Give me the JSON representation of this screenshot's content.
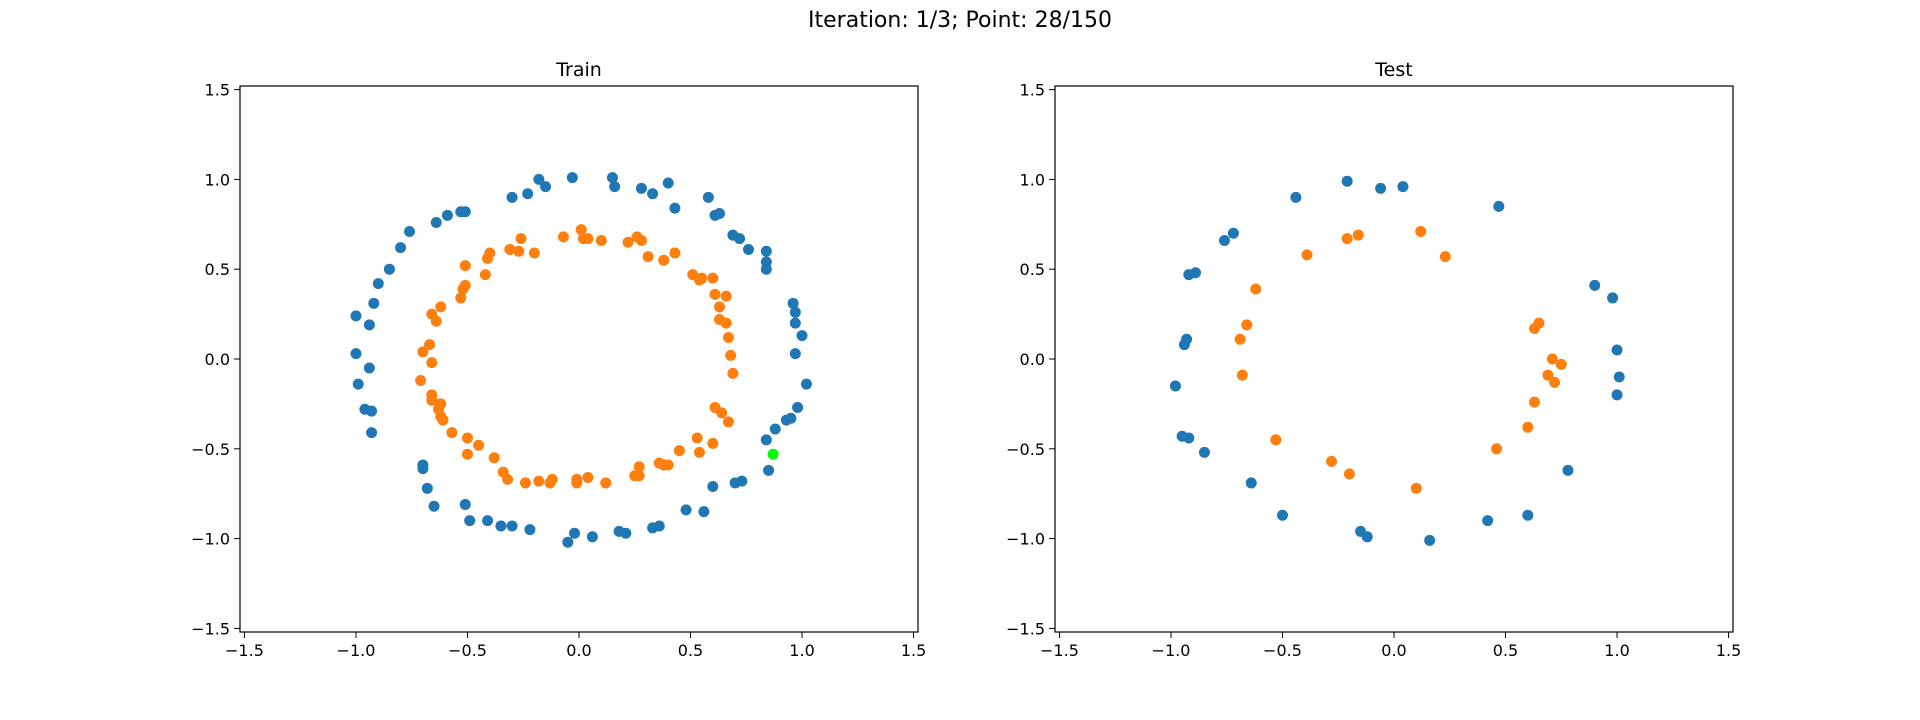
{
  "figure_title": "Iteration: 1/3; Point: 28/150",
  "colors": {
    "class_0": "#1f77b4",
    "class_1": "#ff7f0e",
    "current_point": "#00ff00"
  },
  "chart_data": [
    {
      "type": "scatter",
      "title": "Train",
      "xlim": [
        -1.52,
        1.52
      ],
      "ylim": [
        -1.52,
        1.52
      ],
      "xticks": [
        -1.5,
        -1.0,
        -0.5,
        0.0,
        0.5,
        1.0,
        1.5
      ],
      "yticks": [
        -1.5,
        -1.0,
        -0.5,
        0.0,
        0.5,
        1.0,
        1.5
      ],
      "grid": false,
      "series": [
        {
          "class": "class_0",
          "points": [
            [
              -1.0,
              0.24
            ],
            [
              -1.0,
              0.03
            ],
            [
              -0.99,
              -0.14
            ],
            [
              -0.96,
              -0.28
            ],
            [
              -0.94,
              -0.05
            ],
            [
              -0.93,
              -0.29
            ],
            [
              -0.93,
              -0.41
            ],
            [
              -0.94,
              0.19
            ],
            [
              -0.92,
              0.31
            ],
            [
              -0.9,
              0.42
            ],
            [
              -0.85,
              0.5
            ],
            [
              -0.8,
              0.62
            ],
            [
              -0.76,
              0.71
            ],
            [
              -0.7,
              -0.59
            ],
            [
              -0.7,
              -0.61
            ],
            [
              -0.68,
              -0.72
            ],
            [
              -0.65,
              -0.82
            ],
            [
              -0.64,
              0.76
            ],
            [
              -0.59,
              0.8
            ],
            [
              -0.53,
              0.82
            ],
            [
              -0.51,
              0.82
            ],
            [
              -0.51,
              -0.81
            ],
            [
              -0.49,
              -0.9
            ],
            [
              -0.41,
              -0.9
            ],
            [
              -0.35,
              -0.93
            ],
            [
              -0.3,
              -0.93
            ],
            [
              -0.3,
              0.9
            ],
            [
              -0.22,
              -0.95
            ],
            [
              -0.23,
              0.92
            ],
            [
              -0.18,
              1.0
            ],
            [
              -0.15,
              0.96
            ],
            [
              -0.03,
              1.01
            ],
            [
              -0.02,
              -0.97
            ],
            [
              -0.05,
              -1.02
            ],
            [
              0.06,
              -0.99
            ],
            [
              0.15,
              1.01
            ],
            [
              0.16,
              0.96
            ],
            [
              0.18,
              -0.96
            ],
            [
              0.21,
              -0.97
            ],
            [
              0.28,
              0.95
            ],
            [
              0.33,
              0.92
            ],
            [
              0.33,
              -0.94
            ],
            [
              0.36,
              -0.93
            ],
            [
              0.4,
              0.98
            ],
            [
              0.43,
              0.84
            ],
            [
              0.48,
              -0.84
            ],
            [
              0.56,
              -0.85
            ],
            [
              0.58,
              0.9
            ],
            [
              0.61,
              0.8
            ],
            [
              0.63,
              0.81
            ],
            [
              0.6,
              -0.71
            ],
            [
              0.69,
              0.69
            ],
            [
              0.72,
              0.67
            ],
            [
              0.7,
              -0.69
            ],
            [
              0.73,
              -0.68
            ],
            [
              0.76,
              0.61
            ],
            [
              0.84,
              0.6
            ],
            [
              0.84,
              0.54
            ],
            [
              0.84,
              0.5
            ],
            [
              0.84,
              -0.45
            ],
            [
              0.85,
              -0.62
            ],
            [
              0.88,
              -0.39
            ],
            [
              0.93,
              -0.34
            ],
            [
              0.95,
              -0.33
            ],
            [
              0.96,
              0.31
            ],
            [
              0.97,
              0.26
            ],
            [
              0.97,
              0.2
            ],
            [
              0.97,
              0.03
            ],
            [
              0.98,
              -0.27
            ],
            [
              1.0,
              0.13
            ],
            [
              1.02,
              -0.14
            ]
          ]
        },
        {
          "class": "class_1",
          "points": [
            [
              -0.71,
              -0.12
            ],
            [
              -0.7,
              0.04
            ],
            [
              -0.66,
              0.25
            ],
            [
              -0.67,
              0.08
            ],
            [
              -0.66,
              -0.02
            ],
            [
              -0.66,
              -0.2
            ],
            [
              -0.64,
              0.21
            ],
            [
              -0.66,
              -0.23
            ],
            [
              -0.62,
              -0.25
            ],
            [
              -0.63,
              -0.28
            ],
            [
              -0.62,
              0.29
            ],
            [
              -0.62,
              -0.32
            ],
            [
              -0.61,
              -0.34
            ],
            [
              -0.57,
              -0.41
            ],
            [
              -0.53,
              0.34
            ],
            [
              -0.52,
              0.39
            ],
            [
              -0.51,
              0.41
            ],
            [
              -0.51,
              0.52
            ],
            [
              -0.5,
              -0.44
            ],
            [
              -0.5,
              -0.53
            ],
            [
              -0.45,
              -0.48
            ],
            [
              -0.42,
              0.47
            ],
            [
              -0.41,
              0.56
            ],
            [
              -0.4,
              0.59
            ],
            [
              -0.38,
              -0.55
            ],
            [
              -0.34,
              -0.63
            ],
            [
              -0.32,
              -0.67
            ],
            [
              -0.31,
              0.61
            ],
            [
              -0.27,
              0.6
            ],
            [
              -0.26,
              0.67
            ],
            [
              -0.24,
              -0.69
            ],
            [
              -0.2,
              0.59
            ],
            [
              -0.18,
              -0.68
            ],
            [
              -0.12,
              -0.67
            ],
            [
              -0.13,
              -0.69
            ],
            [
              -0.07,
              0.68
            ],
            [
              -0.01,
              -0.67
            ],
            [
              -0.01,
              -0.69
            ],
            [
              0.01,
              0.72
            ],
            [
              0.02,
              0.67
            ],
            [
              0.04,
              0.67
            ],
            [
              0.04,
              -0.66
            ],
            [
              0.1,
              0.66
            ],
            [
              0.12,
              -0.69
            ],
            [
              0.22,
              0.65
            ],
            [
              0.26,
              0.68
            ],
            [
              0.28,
              0.66
            ],
            [
              0.25,
              -0.65
            ],
            [
              0.27,
              -0.6
            ],
            [
              0.27,
              -0.65
            ],
            [
              0.31,
              0.57
            ],
            [
              0.36,
              -0.58
            ],
            [
              0.38,
              0.55
            ],
            [
              0.4,
              -0.59
            ],
            [
              0.38,
              -0.59
            ],
            [
              0.43,
              0.59
            ],
            [
              0.45,
              -0.51
            ],
            [
              0.51,
              0.47
            ],
            [
              0.54,
              0.44
            ],
            [
              0.55,
              0.45
            ],
            [
              0.53,
              -0.44
            ],
            [
              0.54,
              -0.52
            ],
            [
              0.6,
              0.45
            ],
            [
              0.6,
              -0.47
            ],
            [
              0.61,
              0.36
            ],
            [
              0.61,
              -0.27
            ],
            [
              0.63,
              0.29
            ],
            [
              0.63,
              0.22
            ],
            [
              0.64,
              -0.3
            ],
            [
              0.66,
              0.35
            ],
            [
              0.66,
              0.2
            ],
            [
              0.67,
              -0.35
            ],
            [
              0.67,
              0.12
            ],
            [
              0.68,
              0.02
            ],
            [
              0.69,
              -0.08
            ]
          ]
        },
        {
          "class": "current_point",
          "points": [
            [
              0.87,
              -0.53
            ]
          ]
        }
      ]
    },
    {
      "type": "scatter",
      "title": "Test",
      "xlim": [
        -1.52,
        1.52
      ],
      "ylim": [
        -1.52,
        1.52
      ],
      "xticks": [
        -1.5,
        -1.0,
        -0.5,
        0.0,
        0.5,
        1.0,
        1.5
      ],
      "yticks": [
        -1.5,
        -1.0,
        -0.5,
        0.0,
        0.5,
        1.0,
        1.5
      ],
      "grid": false,
      "series": [
        {
          "class": "class_0",
          "points": [
            [
              -0.98,
              -0.15
            ],
            [
              -0.95,
              -0.43
            ],
            [
              -0.94,
              0.08
            ],
            [
              -0.93,
              0.11
            ],
            [
              -0.92,
              -0.44
            ],
            [
              -0.92,
              0.47
            ],
            [
              -0.89,
              0.48
            ],
            [
              -0.85,
              -0.52
            ],
            [
              -0.76,
              0.66
            ],
            [
              -0.72,
              0.7
            ],
            [
              -0.64,
              -0.69
            ],
            [
              -0.5,
              -0.87
            ],
            [
              -0.44,
              0.9
            ],
            [
              -0.21,
              0.99
            ],
            [
              -0.15,
              -0.96
            ],
            [
              -0.12,
              -0.99
            ],
            [
              -0.06,
              0.95
            ],
            [
              0.04,
              0.96
            ],
            [
              0.16,
              -1.01
            ],
            [
              0.42,
              -0.9
            ],
            [
              0.47,
              0.85
            ],
            [
              0.6,
              -0.87
            ],
            [
              0.78,
              -0.62
            ],
            [
              0.9,
              0.41
            ],
            [
              0.98,
              0.34
            ],
            [
              1.0,
              -0.2
            ],
            [
              1.0,
              0.05
            ],
            [
              1.01,
              -0.1
            ]
          ]
        },
        {
          "class": "class_1",
          "points": [
            [
              -0.69,
              0.11
            ],
            [
              -0.68,
              -0.09
            ],
            [
              -0.66,
              0.19
            ],
            [
              -0.62,
              0.39
            ],
            [
              -0.53,
              -0.45
            ],
            [
              -0.39,
              0.58
            ],
            [
              -0.28,
              -0.57
            ],
            [
              -0.21,
              0.67
            ],
            [
              -0.2,
              -0.64
            ],
            [
              -0.16,
              0.69
            ],
            [
              0.1,
              -0.72
            ],
            [
              0.12,
              0.71
            ],
            [
              0.23,
              0.57
            ],
            [
              0.46,
              -0.5
            ],
            [
              0.6,
              -0.38
            ],
            [
              0.63,
              -0.24
            ],
            [
              0.63,
              0.17
            ],
            [
              0.65,
              0.2
            ],
            [
              0.69,
              -0.09
            ],
            [
              0.71,
              0.0
            ],
            [
              0.72,
              -0.13
            ],
            [
              0.75,
              -0.03
            ]
          ]
        }
      ]
    }
  ]
}
